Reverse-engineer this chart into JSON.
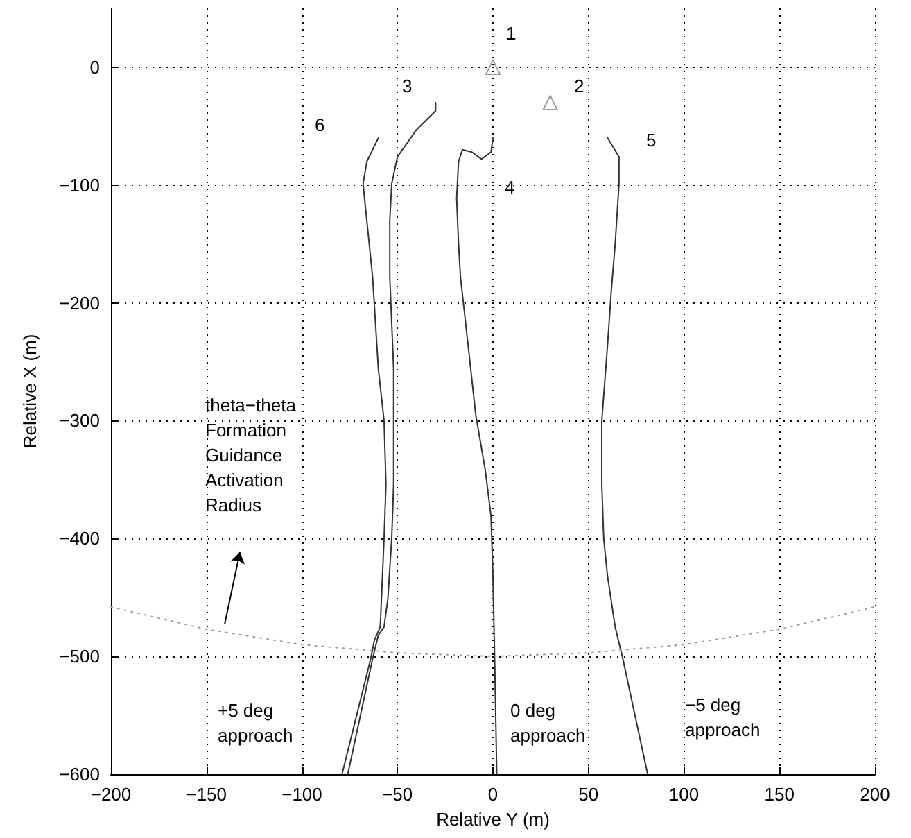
{
  "chart_data": {
    "type": "line",
    "xlabel": "Relative Y (m)",
    "ylabel": "Relative X (m)",
    "xlim": [
      -200,
      200
    ],
    "xticks": [
      -200,
      -150,
      -100,
      -50,
      0,
      50,
      100,
      150,
      200
    ],
    "ylim": [
      -600,
      50
    ],
    "yticks": [
      -600,
      -500,
      -400,
      -300,
      -200,
      -100,
      0
    ],
    "grid": true,
    "marker": "none",
    "line_style": "solid",
    "series": [
      {
        "color": "#333333",
        "x": [
          -60,
          -66,
          -68,
          -63,
          -60,
          -57,
          -56,
          -57,
          -59,
          -62,
          -64,
          -79
        ],
        "values": [
          -60,
          -80,
          -99,
          -178,
          -256,
          -300,
          -354,
          -400,
          -475,
          -486,
          -502,
          -600
        ]
      },
      {
        "color": "#333333",
        "x": [
          -30,
          -30,
          -40,
          -50,
          -53,
          -54,
          -54,
          -52,
          -52,
          -52,
          -53,
          -55,
          -57,
          -60,
          -63,
          -76
        ],
        "values": [
          -30,
          -37,
          -53,
          -76,
          -99,
          -130,
          -178,
          -256,
          -300,
          -354,
          -400,
          -451,
          -475,
          -482,
          -502,
          -600
        ]
      },
      {
        "color": "#333333",
        "x": [
          0,
          -1,
          -6,
          -11,
          -16,
          -18,
          -19,
          -18,
          -17,
          -13,
          -9,
          -4,
          -1,
          0,
          1,
          2
        ],
        "values": [
          -60,
          -72,
          -78,
          -72,
          -70,
          -80,
          -111,
          -150,
          -178,
          -236,
          -295,
          -342,
          -381,
          -432,
          -510,
          -600
        ]
      },
      {
        "color": "#333333",
        "x": [
          60,
          66,
          66,
          64,
          62,
          60,
          57,
          57,
          58,
          60,
          64,
          68,
          81
        ],
        "values": [
          -60,
          -76,
          -99,
          -150,
          -189,
          -236,
          -300,
          -354,
          -400,
          -432,
          -475,
          -502,
          -600
        ]
      },
      {
        "type": "scatter",
        "marker": "triangle",
        "color": "#808080",
        "x": [
          0,
          30
        ],
        "values": [
          0,
          -30
        ]
      },
      {
        "color": "#999999",
        "line_style": "dotted",
        "x": [
          -200,
          -150,
          -100,
          -50,
          0,
          50,
          100,
          150,
          200
        ],
        "values": [
          -458,
          -477,
          -490,
          -497,
          -500,
          -497,
          -490,
          -477,
          -458
        ]
      }
    ],
    "annotations": [
      "1",
      "2",
      "3",
      "4",
      "5",
      "6",
      "theta−theta\nFormation\nGuidance\nActivation\nRadius",
      "+5 deg\napproach",
      "0 deg\napproach",
      "−5 deg\napproach"
    ]
  }
}
